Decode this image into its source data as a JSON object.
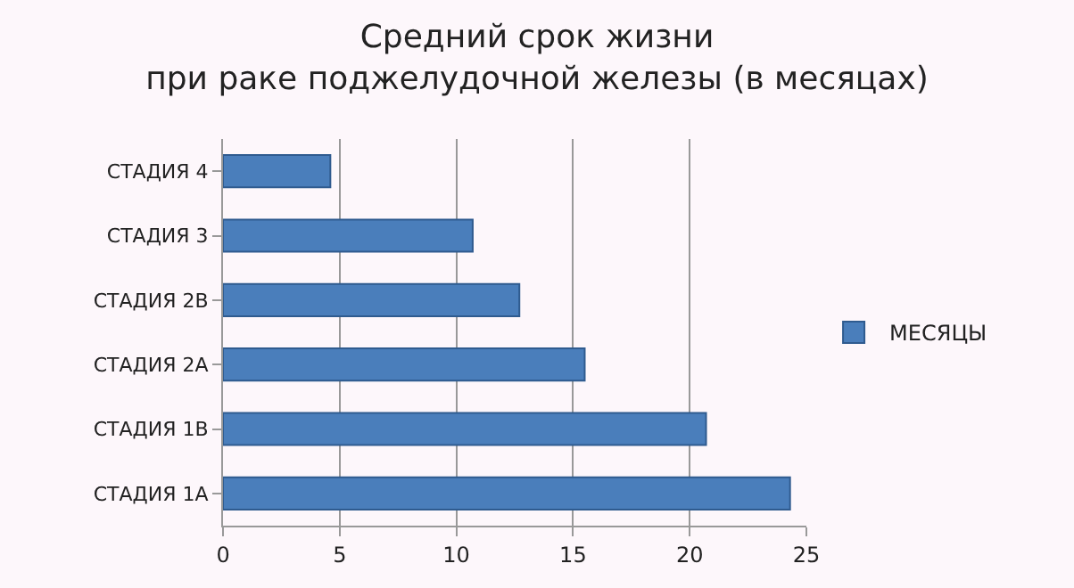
{
  "chart_data": {
    "type": "bar",
    "orientation": "horizontal",
    "title": "Средний срок жизни\nпри раке поджелудочной железы (в месяцах)",
    "categories": [
      "СТАДИЯ 4",
      "СТАДИЯ 3",
      "СТАДИЯ 2B",
      "СТАДИЯ 2A",
      "СТАДИЯ 1B",
      "СТАДИЯ 1A"
    ],
    "series": [
      {
        "name": "МЕСЯЦЫ",
        "color": "#4a7ebb",
        "values": [
          4.6,
          10.7,
          12.7,
          15.5,
          20.7,
          24.3
        ]
      }
    ],
    "xlim": [
      0,
      25
    ],
    "xticks": [
      0,
      5,
      10,
      15,
      20,
      25
    ],
    "grid": "x",
    "legend": "right"
  }
}
